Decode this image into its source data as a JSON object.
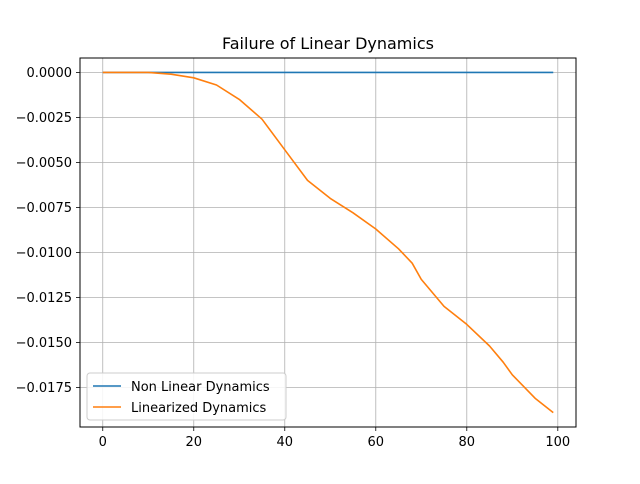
{
  "chart_data": {
    "type": "line",
    "title": "Failure of Linear Dynamics",
    "xlabel": "",
    "ylabel": "",
    "xlim": [
      -5,
      104
    ],
    "ylim": [
      -0.0197,
      0.0008
    ],
    "grid": true,
    "legend_placement": "lower-left",
    "x_ticks": [
      {
        "value": 0,
        "label": "0"
      },
      {
        "value": 20,
        "label": "20"
      },
      {
        "value": 40,
        "label": "40"
      },
      {
        "value": 60,
        "label": "60"
      },
      {
        "value": 80,
        "label": "80"
      },
      {
        "value": 100,
        "label": "100"
      }
    ],
    "y_ticks": [
      {
        "value": 0.0,
        "label": "0.0000"
      },
      {
        "value": -0.0025,
        "label": "−0.0025"
      },
      {
        "value": -0.005,
        "label": "−0.0050"
      },
      {
        "value": -0.0075,
        "label": "−0.0075"
      },
      {
        "value": -0.01,
        "label": "−0.0100"
      },
      {
        "value": -0.0125,
        "label": "−0.0125"
      },
      {
        "value": -0.015,
        "label": "−0.0150"
      },
      {
        "value": -0.0175,
        "label": "−0.0175"
      }
    ],
    "series": [
      {
        "name": "Non Linear Dynamics",
        "color": "#1f77b4",
        "x": [
          0,
          99
        ],
        "y": [
          0.0,
          0.0
        ]
      },
      {
        "name": "Linearized Dynamics",
        "color": "#ff7f0e",
        "x": [
          0,
          5,
          10,
          15,
          20,
          25,
          30,
          35,
          40,
          45,
          50,
          55,
          60,
          65,
          68,
          70,
          75,
          80,
          85,
          88,
          90,
          95,
          99
        ],
        "y": [
          0.0,
          0.0,
          0.0,
          -0.0001,
          -0.0003,
          -0.0007,
          -0.0015,
          -0.0026,
          -0.0043,
          -0.006,
          -0.007,
          -0.0078,
          -0.0087,
          -0.0098,
          -0.0106,
          -0.0115,
          -0.013,
          -0.014,
          -0.0152,
          -0.0161,
          -0.0168,
          -0.0181,
          -0.0189
        ]
      }
    ]
  }
}
